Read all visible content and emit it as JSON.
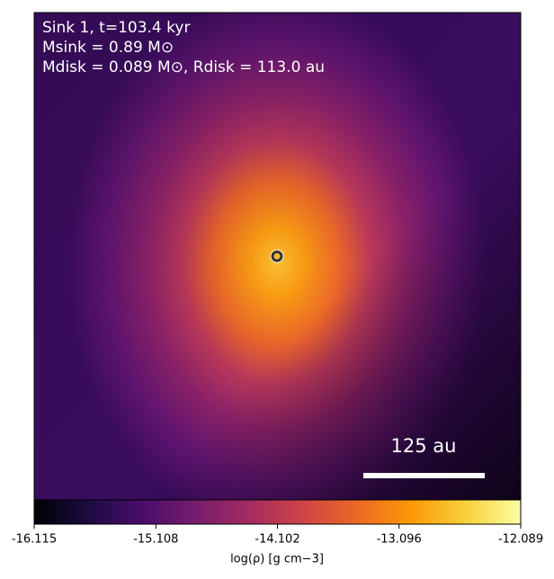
{
  "chart_data": {
    "type": "image",
    "annotations": [
      "Sink 1, t=103.4 kyr",
      "Msink = 0.89 M⊙",
      "Mdisk = 0.089 M⊙, Rdisk = 113.0 au"
    ],
    "scalebar_label": "125 au",
    "colormap": "inferno",
    "colorbar": {
      "label": "log(ρ) [g cm−3]",
      "lim": [
        -16.115,
        -12.089
      ],
      "ticks": [
        -16.115,
        -15.108,
        -14.102,
        -13.096,
        -12.089
      ]
    }
  }
}
